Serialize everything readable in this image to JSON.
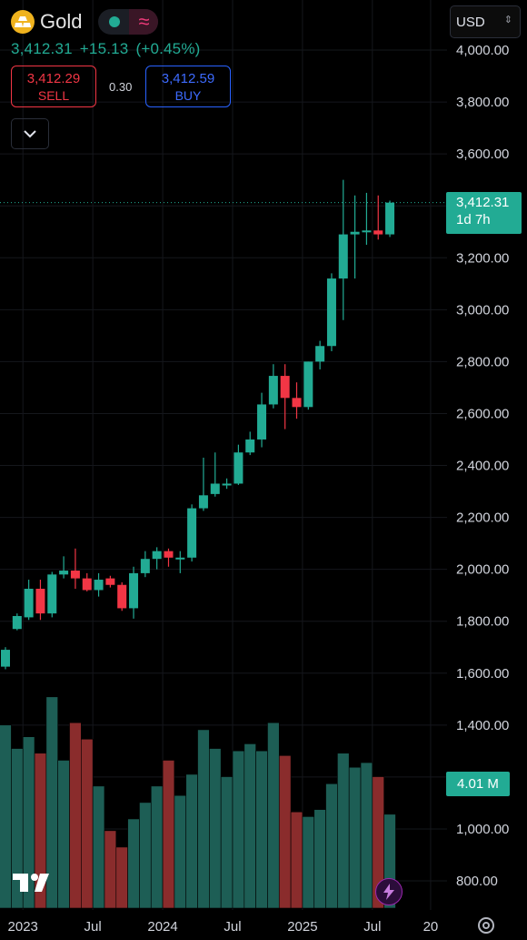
{
  "header": {
    "symbol": "Gold",
    "icon": "gold-bars-icon",
    "price": "3,412.31",
    "change": "+15.13",
    "change_pct": "(+0.45%)",
    "sell_price": "3,412.29",
    "sell_label": "SELL",
    "spread": "0.30",
    "buy_price": "3,412.59",
    "buy_label": "BUY",
    "currency": "USD"
  },
  "price_tag": {
    "price": "3,412.31",
    "countdown": "1d 7h"
  },
  "volume_tag": "4.01 M",
  "colors": {
    "up": "#22ab94",
    "down": "#f23645",
    "vol_up": "#1d5e55",
    "vol_down": "#8a2c2c",
    "background": "#000000"
  },
  "chart_data": {
    "type": "candlestick",
    "interval": "monthly",
    "y_ticks": [
      "800.00",
      "1,000.00",
      "1,200.00",
      "1,400.00",
      "1,600.00",
      "1,800.00",
      "2,000.00",
      "2,200.00",
      "2,400.00",
      "2,600.00",
      "2,800.00",
      "3,000.00",
      "3,200.00",
      "3,400.00",
      "3,600.00",
      "3,800.00",
      "4,000.00"
    ],
    "x_ticks": [
      {
        "label": "2023",
        "bar": 1.5
      },
      {
        "label": "Jul",
        "bar": 7.5
      },
      {
        "label": "2024",
        "bar": 13.5
      },
      {
        "label": "Jul",
        "bar": 19.5
      },
      {
        "label": "2025",
        "bar": 25.5
      },
      {
        "label": "Jul",
        "bar": 31.5
      },
      {
        "label": "20",
        "bar": 36.5
      }
    ],
    "ylim": [
      750,
      4050
    ],
    "volume_ylim": [
      0,
      1.0
    ],
    "current_price": 3412.31,
    "grid": true,
    "candles": [
      {
        "o": 1625,
        "h": 1700,
        "l": 1615,
        "c": 1690,
        "v": 0.78
      },
      {
        "o": 1770,
        "h": 1830,
        "l": 1765,
        "c": 1820,
        "v": 0.68
      },
      {
        "o": 1815,
        "h": 1960,
        "l": 1805,
        "c": 1925,
        "v": 0.73
      },
      {
        "o": 1925,
        "h": 1960,
        "l": 1805,
        "c": 1830,
        "v": 0.66
      },
      {
        "o": 1830,
        "h": 1990,
        "l": 1815,
        "c": 1980,
        "v": 0.9
      },
      {
        "o": 1980,
        "h": 2050,
        "l": 1965,
        "c": 1995,
        "v": 0.63
      },
      {
        "o": 1995,
        "h": 2080,
        "l": 1925,
        "c": 1965,
        "v": 0.79
      },
      {
        "o": 1965,
        "h": 1985,
        "l": 1915,
        "c": 1920,
        "v": 0.72
      },
      {
        "o": 1920,
        "h": 1985,
        "l": 1895,
        "c": 1960,
        "v": 0.52
      },
      {
        "o": 1965,
        "h": 1975,
        "l": 1930,
        "c": 1940,
        "v": 0.33
      },
      {
        "o": 1940,
        "h": 1950,
        "l": 1840,
        "c": 1850,
        "v": 0.26
      },
      {
        "o": 1850,
        "h": 2010,
        "l": 1810,
        "c": 1985,
        "v": 0.38
      },
      {
        "o": 1985,
        "h": 2070,
        "l": 1970,
        "c": 2040,
        "v": 0.45
      },
      {
        "o": 2040,
        "h": 2085,
        "l": 2000,
        "c": 2070,
        "v": 0.52
      },
      {
        "o": 2070,
        "h": 2080,
        "l": 2010,
        "c": 2045,
        "v": 0.63
      },
      {
        "o": 2040,
        "h": 2070,
        "l": 1985,
        "c": 2045,
        "v": 0.48
      },
      {
        "o": 2045,
        "h": 2250,
        "l": 2030,
        "c": 2235,
        "v": 0.57
      },
      {
        "o": 2235,
        "h": 2430,
        "l": 2225,
        "c": 2285,
        "v": 0.76
      },
      {
        "o": 2290,
        "h": 2450,
        "l": 2280,
        "c": 2330,
        "v": 0.68
      },
      {
        "o": 2325,
        "h": 2350,
        "l": 2310,
        "c": 2330,
        "v": 0.56
      },
      {
        "o": 2330,
        "h": 2480,
        "l": 2325,
        "c": 2450,
        "v": 0.67
      },
      {
        "o": 2450,
        "h": 2530,
        "l": 2440,
        "c": 2500,
        "v": 0.7
      },
      {
        "o": 2500,
        "h": 2680,
        "l": 2470,
        "c": 2635,
        "v": 0.67
      },
      {
        "o": 2635,
        "h": 2790,
        "l": 2620,
        "c": 2745,
        "v": 0.79
      },
      {
        "o": 2745,
        "h": 2790,
        "l": 2540,
        "c": 2660,
        "v": 0.65
      },
      {
        "o": 2660,
        "h": 2720,
        "l": 2580,
        "c": 2625,
        "v": 0.41
      },
      {
        "o": 2625,
        "h": 2800,
        "l": 2615,
        "c": 2800,
        "v": 0.39
      },
      {
        "o": 2800,
        "h": 2880,
        "l": 2770,
        "c": 2860,
        "v": 0.42
      },
      {
        "o": 2860,
        "h": 3140,
        "l": 2840,
        "c": 3120,
        "v": 0.53
      },
      {
        "o": 3120,
        "h": 3500,
        "l": 2960,
        "c": 3290,
        "v": 0.66
      },
      {
        "o": 3290,
        "h": 3440,
        "l": 3120,
        "c": 3300,
        "v": 0.6
      },
      {
        "o": 3300,
        "h": 3450,
        "l": 3250,
        "c": 3305,
        "v": 0.62
      },
      {
        "o": 3305,
        "h": 3440,
        "l": 3270,
        "c": 3290,
        "v": 0.56
      },
      {
        "o": 3290,
        "h": 3420,
        "l": 3280,
        "c": 3412.31,
        "v": 0.4
      }
    ]
  }
}
